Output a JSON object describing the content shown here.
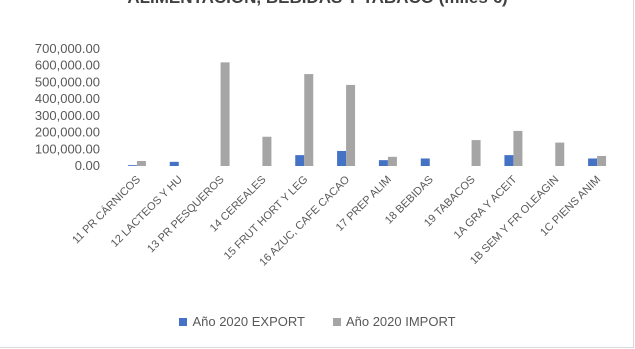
{
  "chart_data": {
    "type": "bar",
    "title": "ALIMENTACIÓN, BEBIDAS Y TABACO (miles €)",
    "xlabel": "",
    "ylabel": "",
    "ylim": [
      0,
      700000
    ],
    "yticks": [
      0,
      100000,
      200000,
      300000,
      400000,
      500000,
      600000,
      700000
    ],
    "ytick_labels": [
      "0.00",
      "100,000.00",
      "200,000.00",
      "300,000.00",
      "400,000.00",
      "500,000.00",
      "600,000.00",
      "700,000.00"
    ],
    "grid": false,
    "legend_position": "bottom",
    "categories": [
      "11 PR CÁRNICOS",
      "12 LACTEOS Y HU",
      "13 PR PESQUEROS",
      "14 CEREALES",
      "15 FRUT HORT Y LEG",
      "16 AZUC, CAFE CACAO",
      "17 PREP ALIM",
      "18 BEBIDAS",
      "19 TABACOS",
      "1A GRA Y ACEIT",
      "1B SEM Y FR OLEAGIN",
      "1C PIENS ANIM"
    ],
    "series": [
      {
        "name": "Año 2020 EXPORT",
        "color": "#4472c4",
        "values": [
          5000,
          25000,
          0,
          0,
          65000,
          90000,
          35000,
          45000,
          0,
          65000,
          0,
          45000
        ]
      },
      {
        "name": "Año 2020 IMPORT",
        "color": "#a5a5a5",
        "values": [
          30000,
          0,
          620000,
          175000,
          550000,
          485000,
          55000,
          0,
          155000,
          210000,
          140000,
          60000
        ]
      }
    ]
  }
}
